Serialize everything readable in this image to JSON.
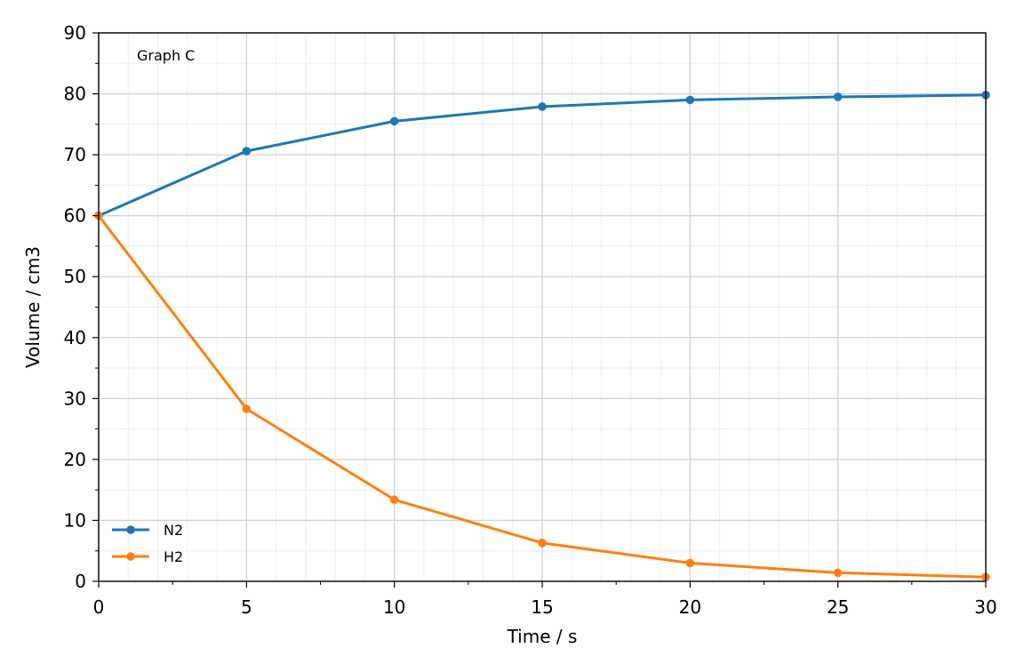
{
  "chart_data": {
    "type": "line",
    "annotation": "Graph C",
    "xlabel": "Time / s",
    "ylabel": "Volume / cm3",
    "xlim": [
      0,
      30
    ],
    "ylim": [
      0,
      90
    ],
    "x_ticks": [
      0,
      5,
      10,
      15,
      20,
      25,
      30
    ],
    "y_ticks": [
      0,
      10,
      20,
      30,
      40,
      50,
      60,
      70,
      80,
      90
    ],
    "grid": true,
    "legend_position": "bottom-left",
    "x": [
      0,
      5,
      10,
      15,
      20,
      25,
      30
    ],
    "series": [
      {
        "name": "N2",
        "color": "#1f77b4",
        "values": [
          60,
          70.6,
          75.5,
          77.9,
          79.0,
          79.5,
          79.8
        ]
      },
      {
        "name": "H2",
        "color": "#ff7f0e",
        "values": [
          60,
          28.3,
          13.4,
          6.3,
          3.0,
          1.4,
          0.7
        ]
      }
    ]
  }
}
